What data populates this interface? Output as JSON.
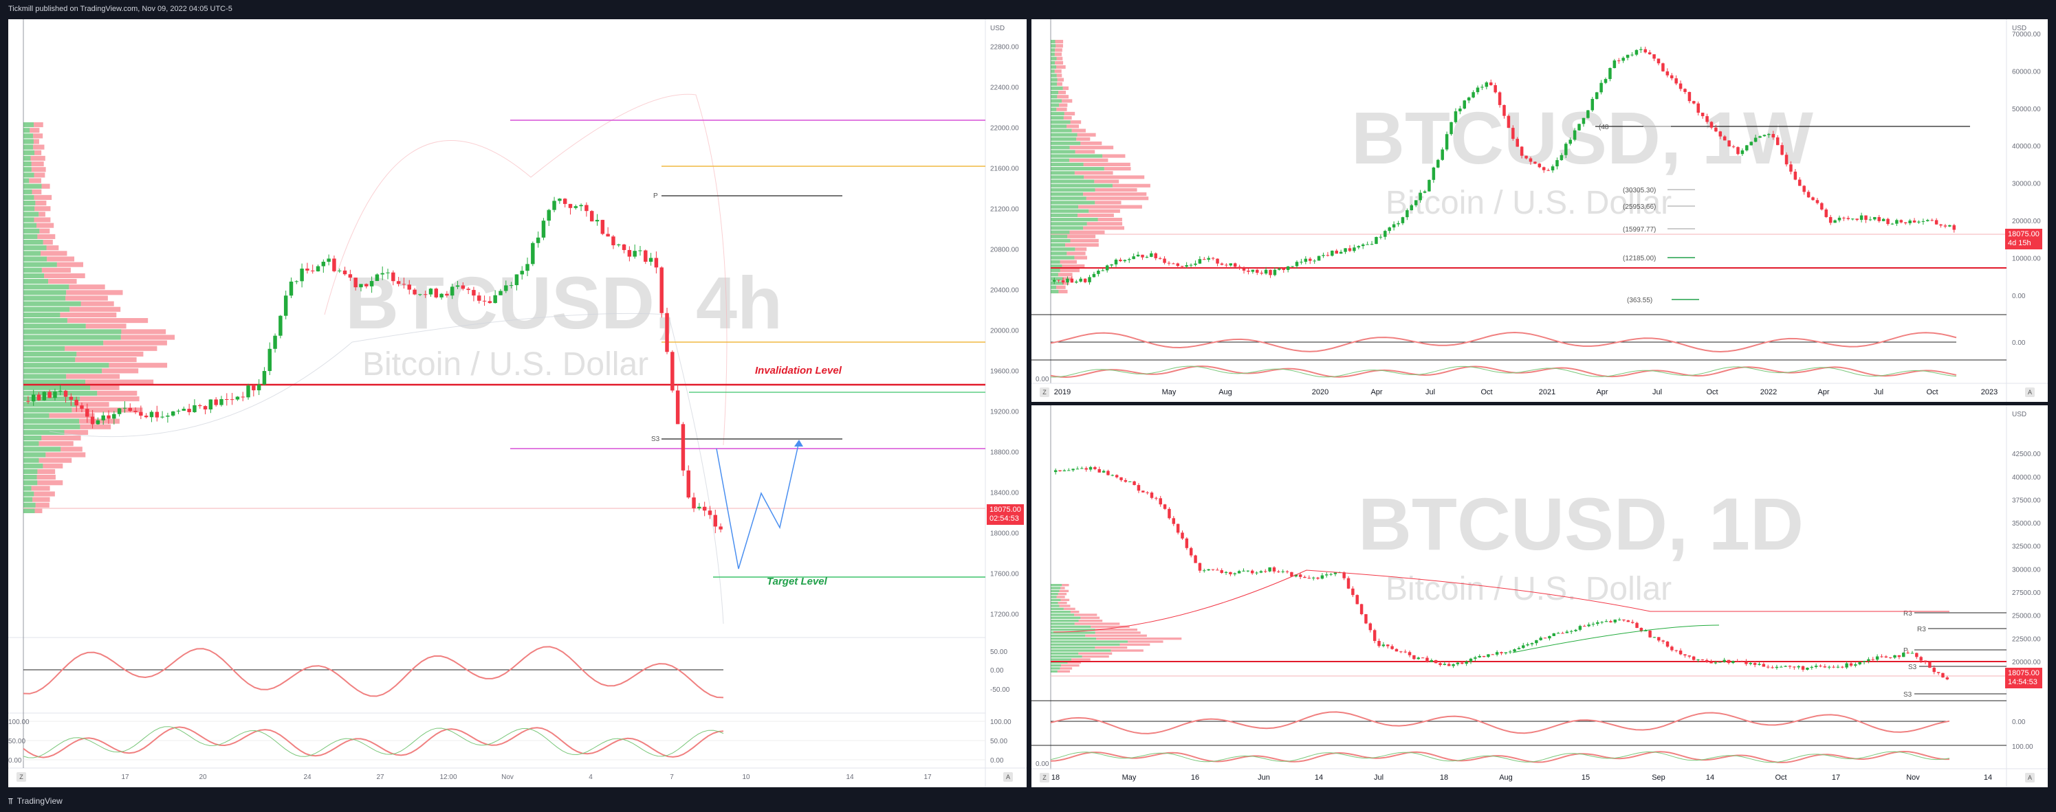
{
  "header": {
    "text": "Tickmill published on TradingView.com, Nov 09, 2022 04:05 UTC-5"
  },
  "footer": {
    "brand": "TradingView"
  },
  "panels": {
    "left": {
      "symbol": "BTCUSD, 4h",
      "subtitle": "Bitcoin / U.S. Dollar",
      "currency": "USD",
      "price_tag": "18075.00",
      "countdown": "02:54:53",
      "annotations": {
        "invalidation": "Invalidation Level",
        "target": "Target Level"
      },
      "pivot_labels": {
        "p": "P",
        "s3": "S3"
      },
      "axis_badges": {
        "z": "Z",
        "a": "A"
      },
      "y_ticks": [
        "22800.00",
        "22400.00",
        "22000.00",
        "21600.00",
        "21200.00",
        "20800.00",
        "20400.00",
        "20000.00",
        "19600.00",
        "19200.00",
        "18800.00",
        "18400.00",
        "18000.00",
        "17600.00",
        "17200.00"
      ],
      "rsi_ticks": [
        "50.00",
        "0.00",
        "-50.00"
      ],
      "stoch_ticks": [
        "100.00",
        "50.00",
        "0.00"
      ],
      "stoch_right_ticks": [
        "100.00",
        "50.00",
        "0.00"
      ],
      "x_labels": [
        "17",
        "20",
        "24",
        "27",
        "12:00",
        "Nov",
        "4",
        "7",
        "10",
        "14",
        "17"
      ]
    },
    "top_right": {
      "symbol": "BTCUSD, 1W",
      "subtitle": "Bitcoin / U.S. Dollar",
      "currency": "USD",
      "price_tag": "18075.00",
      "countdown": "4d 15h",
      "level_labels": [
        "(48",
        "(30305.30)",
        "(25953.66)",
        "(15997.77)",
        "(12185.00)",
        "(363.55)"
      ],
      "axis_badges": {
        "z": "Z",
        "a": "A"
      },
      "y_ticks": [
        "70000.00",
        "60000.00",
        "50000.00",
        "40000.00",
        "30000.00",
        "20000.00",
        "10000.00",
        "0.00"
      ],
      "osc_ticks": [
        "0.00",
        "0.00"
      ],
      "x_labels": [
        "2019",
        "May",
        "Aug",
        "2020",
        "Apr",
        "Jul",
        "Oct",
        "2021",
        "Apr",
        "Jul",
        "Oct",
        "2022",
        "Apr",
        "Jul",
        "Oct",
        "2023"
      ]
    },
    "bottom_right": {
      "symbol": "BTCUSD, 1D",
      "subtitle": "Bitcoin / U.S. Dollar",
      "currency": "USD",
      "price_tag": "18075.00",
      "countdown": "14:54:53",
      "pivot_labels": [
        "R3",
        "R3",
        "P",
        "S3",
        "S3"
      ],
      "axis_badges": {
        "z": "Z",
        "a": "A"
      },
      "y_ticks": [
        "42500.00",
        "40000.00",
        "37500.00",
        "35000.00",
        "32500.00",
        "30000.00",
        "27500.00",
        "25000.00",
        "22500.00",
        "20000.00",
        "17500.00"
      ],
      "osc_ticks": [
        "0.00",
        "100.00",
        "0.00"
      ],
      "x_labels": [
        "18",
        "May",
        "16",
        "Jun",
        "14",
        "Jul",
        "18",
        "Aug",
        "15",
        "Sep",
        "14",
        "Oct",
        "17",
        "Nov",
        "14"
      ]
    }
  },
  "colors": {
    "up": "#22ab3c",
    "down": "#f23645",
    "bg": "#131722",
    "panel": "#ffffff"
  },
  "chart_data": [
    {
      "type": "line",
      "title": "BTCUSD, 4h",
      "x": [
        "Oct 17",
        "Oct 20",
        "Oct 24",
        "Oct 27",
        "Nov 1",
        "Nov 4",
        "Nov 7",
        "Nov 8",
        "Nov 9"
      ],
      "series": [
        {
          "values": [
            19300,
            19100,
            19300,
            20600,
            20450,
            21300,
            20800,
            18200,
            18075
          ]
        }
      ],
      "ylim": [
        17000,
        23000
      ]
    },
    {
      "type": "line",
      "title": "BTCUSD, 1W",
      "x": [
        "2019",
        "2020",
        "2021 Apr",
        "2021 Oct",
        "2022",
        "2022 Jul",
        "2022 Nov"
      ],
      "series": [
        {
          "values": [
            3700,
            7200,
            58000,
            66000,
            47000,
            20000,
            18075
          ]
        }
      ],
      "ylim": [
        0,
        72000
      ]
    },
    {
      "type": "line",
      "title": "BTCUSD, 1D",
      "x": [
        "Apr 18",
        "May 16",
        "Jun 14",
        "Jul 18",
        "Aug 15",
        "Sep 14",
        "Oct 17",
        "Nov 9"
      ],
      "series": [
        {
          "values": [
            40500,
            30000,
            22000,
            21500,
            24000,
            20200,
            19300,
            18075
          ]
        }
      ],
      "ylim": [
        16500,
        44000
      ]
    }
  ]
}
